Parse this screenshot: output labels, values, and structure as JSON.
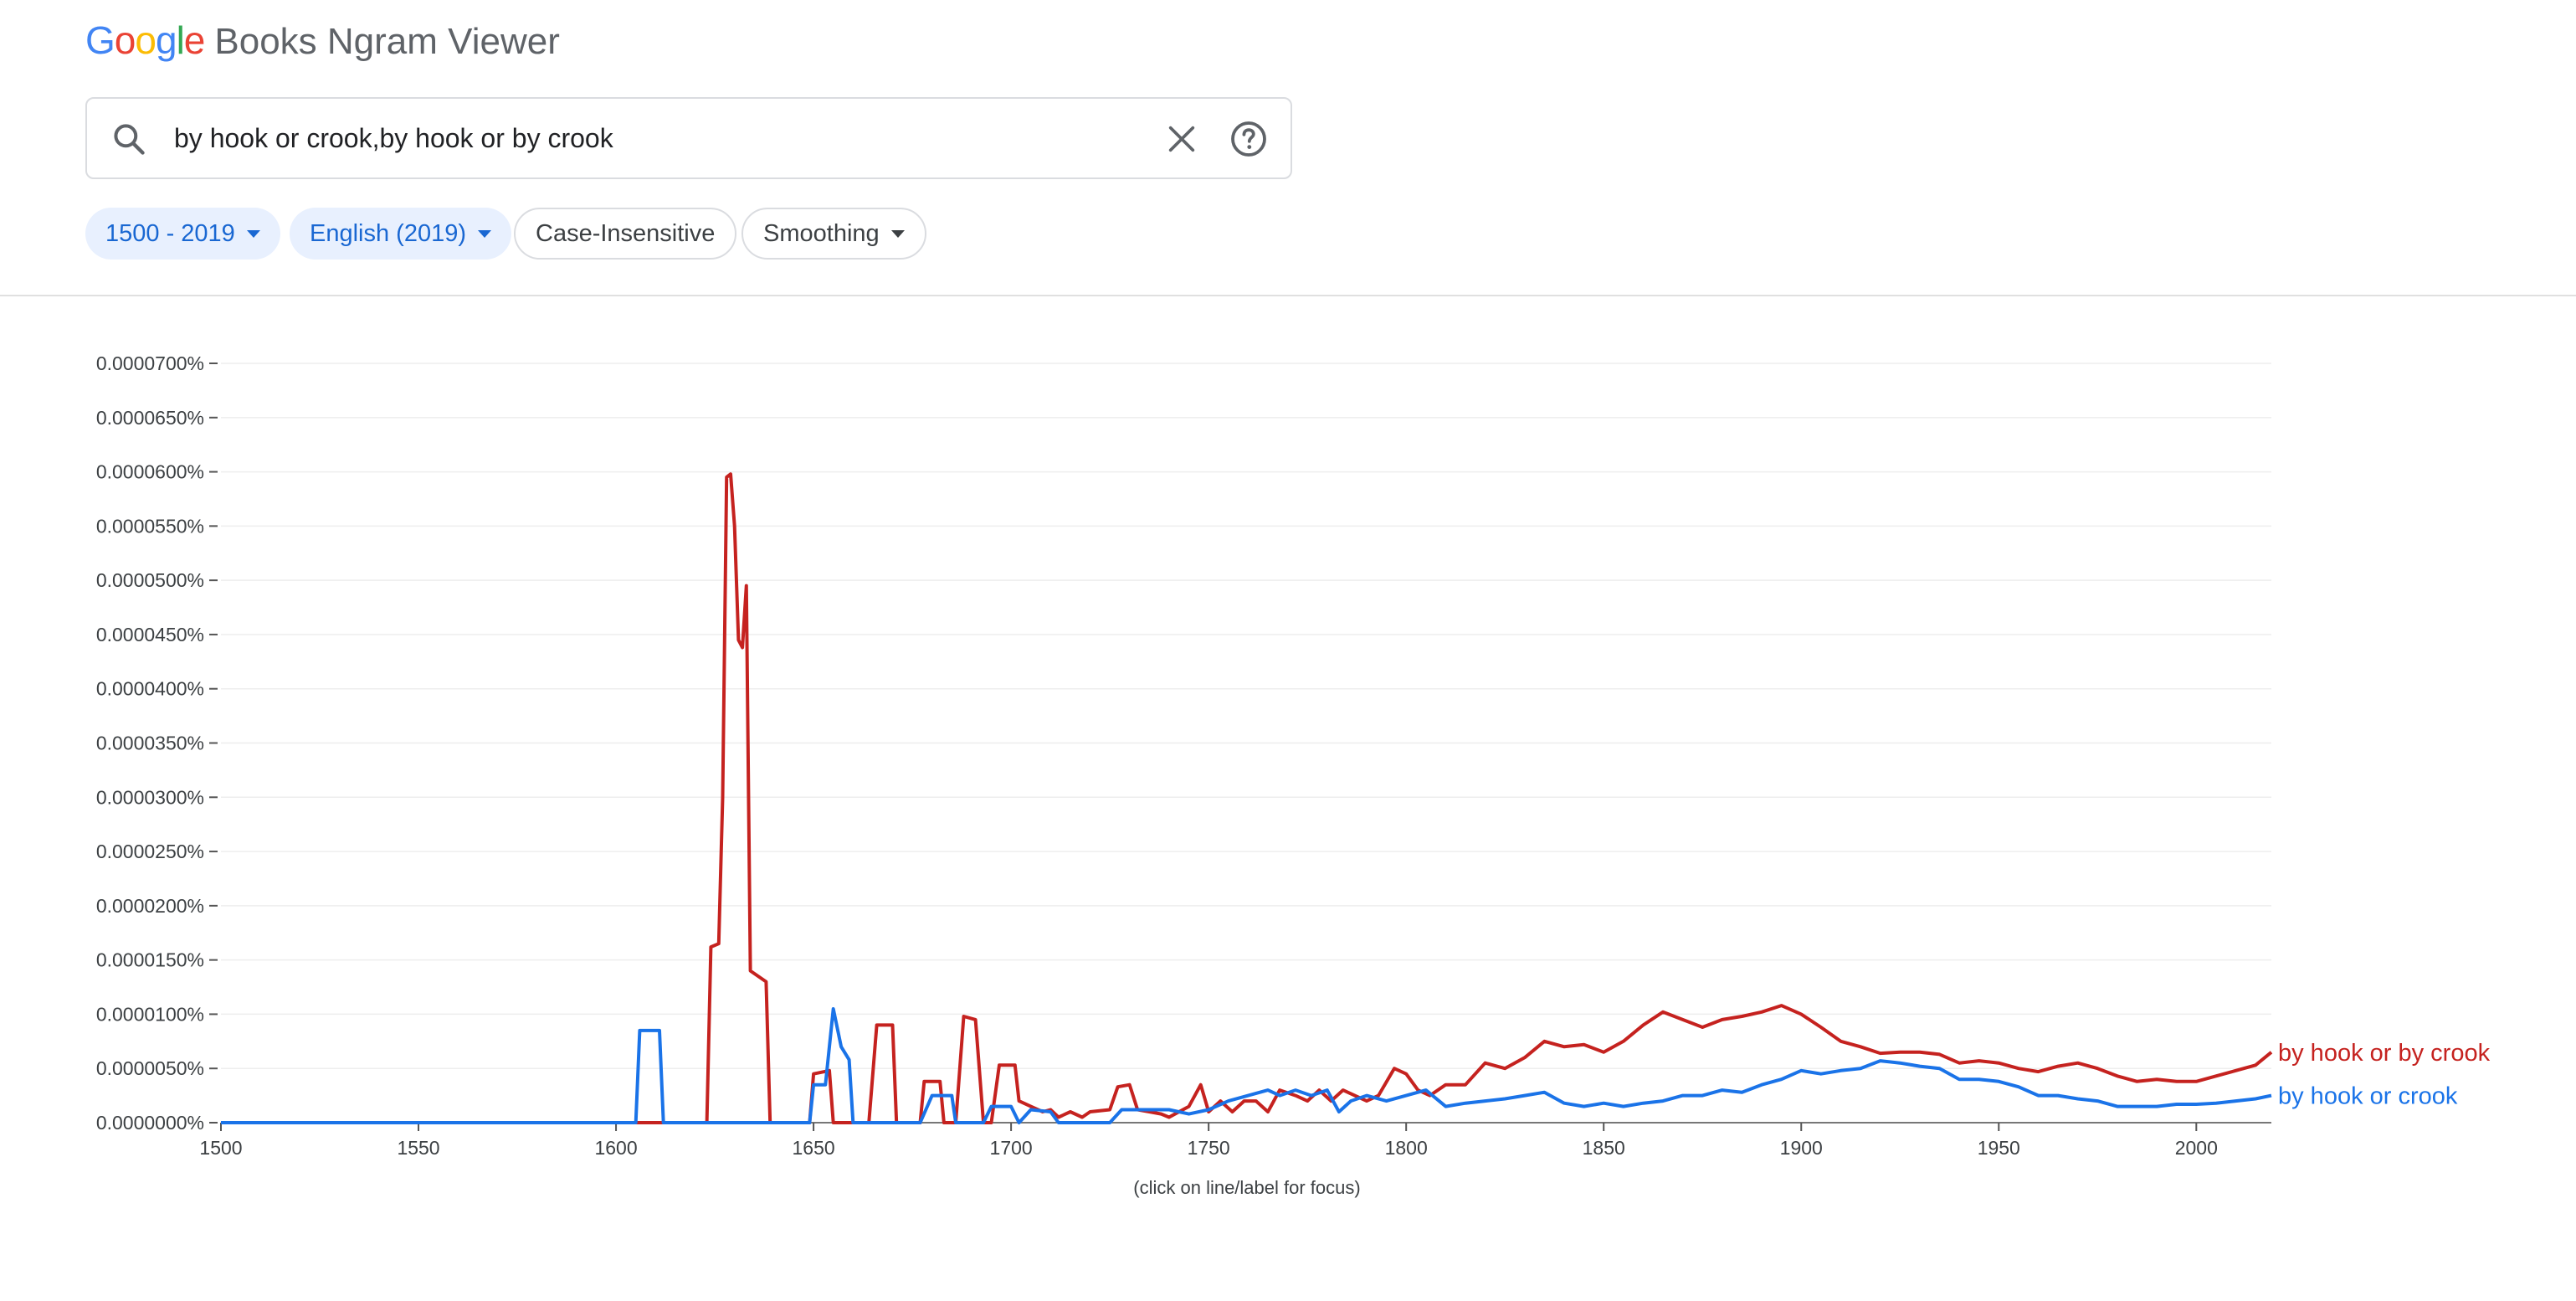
{
  "brand": {
    "google_letters": [
      {
        "ch": "G",
        "color": "#4285F4"
      },
      {
        "ch": "o",
        "color": "#EA4335"
      },
      {
        "ch": "o",
        "color": "#FBBC05"
      },
      {
        "ch": "g",
        "color": "#4285F4"
      },
      {
        "ch": "l",
        "color": "#34A853"
      },
      {
        "ch": "e",
        "color": "#EA4335"
      }
    ],
    "product_name": "Books Ngram Viewer"
  },
  "search": {
    "query": "by hook or crook,by hook or by crook",
    "icons": {
      "search": "search-icon",
      "clear": "close-icon",
      "help": "help-icon"
    }
  },
  "filters": {
    "year_range": "1500 - 2019",
    "corpus": "English (2019)",
    "case": "Case-Insensitive",
    "smoothing": "Smoothing"
  },
  "chart_data": {
    "type": "line",
    "x_range": [
      1500,
      2019
    ],
    "y_range": [
      0,
      7e-05
    ],
    "y_ticks": [
      "0.0000700%",
      "0.0000650%",
      "0.0000600%",
      "0.0000550%",
      "0.0000500%",
      "0.0000450%",
      "0.0000400%",
      "0.0000350%",
      "0.0000300%",
      "0.0000250%",
      "0.0000200%",
      "0.0000150%",
      "0.0000100%",
      "0.0000050%",
      "0.0000000%"
    ],
    "x_ticks": [
      "1500",
      "1550",
      "1600",
      "1650",
      "1700",
      "1750",
      "1800",
      "1850",
      "1900",
      "1950",
      "2000"
    ],
    "grid": true,
    "series": [
      {
        "name": "by hook or by crook",
        "color": "#c5221f",
        "points": [
          [
            1500,
            0
          ],
          [
            1620,
            0
          ],
          [
            1623,
            0
          ],
          [
            1624,
            1.62e-05
          ],
          [
            1626,
            1.65e-05
          ],
          [
            1627,
            3e-05
          ],
          [
            1628,
            5.95e-05
          ],
          [
            1629,
            5.98e-05
          ],
          [
            1630,
            5.5e-05
          ],
          [
            1631,
            4.45e-05
          ],
          [
            1632,
            4.38e-05
          ],
          [
            1633,
            4.95e-05
          ],
          [
            1634,
            1.4e-05
          ],
          [
            1636,
            1.35e-05
          ],
          [
            1638,
            1.3e-05
          ],
          [
            1639,
            0
          ],
          [
            1649,
            0
          ],
          [
            1650,
            4.5e-06
          ],
          [
            1654,
            4.8e-06
          ],
          [
            1655,
            0
          ],
          [
            1664,
            0
          ],
          [
            1666,
            9e-06
          ],
          [
            1670,
            9e-06
          ],
          [
            1671,
            0
          ],
          [
            1677,
            0
          ],
          [
            1678,
            3.8e-06
          ],
          [
            1682,
            3.8e-06
          ],
          [
            1683,
            0
          ],
          [
            1686,
            0
          ],
          [
            1688,
            9.8e-06
          ],
          [
            1691,
            9.5e-06
          ],
          [
            1693,
            0
          ],
          [
            1695,
            0
          ],
          [
            1697,
            5.3e-06
          ],
          [
            1701,
            5.3e-06
          ],
          [
            1702,
            2e-06
          ],
          [
            1705,
            1.5e-06
          ],
          [
            1708,
            1e-06
          ],
          [
            1710,
            1.2e-06
          ],
          [
            1712,
            5e-07
          ],
          [
            1715,
            1e-06
          ],
          [
            1718,
            5e-07
          ],
          [
            1720,
            1e-06
          ],
          [
            1725,
            1.2e-06
          ],
          [
            1727,
            3.3e-06
          ],
          [
            1730,
            3.5e-06
          ],
          [
            1732,
            1.2e-06
          ],
          [
            1735,
            1e-06
          ],
          [
            1738,
            8e-07
          ],
          [
            1740,
            5e-07
          ],
          [
            1745,
            1.5e-06
          ],
          [
            1748,
            3.5e-06
          ],
          [
            1750,
            1e-06
          ],
          [
            1753,
            2e-06
          ],
          [
            1756,
            1e-06
          ],
          [
            1759,
            2e-06
          ],
          [
            1762,
            2e-06
          ],
          [
            1765,
            1e-06
          ],
          [
            1768,
            3e-06
          ],
          [
            1772,
            2.5e-06
          ],
          [
            1775,
            2e-06
          ],
          [
            1778,
            3e-06
          ],
          [
            1781,
            2e-06
          ],
          [
            1784,
            3e-06
          ],
          [
            1787,
            2.5e-06
          ],
          [
            1790,
            2e-06
          ],
          [
            1793,
            2.5e-06
          ],
          [
            1797,
            5e-06
          ],
          [
            1800,
            4.5e-06
          ],
          [
            1803,
            3e-06
          ],
          [
            1806,
            2.5e-06
          ],
          [
            1810,
            3.5e-06
          ],
          [
            1815,
            3.5e-06
          ],
          [
            1820,
            5.5e-06
          ],
          [
            1825,
            5e-06
          ],
          [
            1830,
            6e-06
          ],
          [
            1835,
            7.5e-06
          ],
          [
            1840,
            7e-06
          ],
          [
            1845,
            7.2e-06
          ],
          [
            1850,
            6.5e-06
          ],
          [
            1855,
            7.5e-06
          ],
          [
            1860,
            9e-06
          ],
          [
            1865,
            1.02e-05
          ],
          [
            1870,
            9.5e-06
          ],
          [
            1875,
            8.8e-06
          ],
          [
            1880,
            9.5e-06
          ],
          [
            1885,
            9.8e-06
          ],
          [
            1890,
            1.02e-05
          ],
          [
            1895,
            1.08e-05
          ],
          [
            1900,
            1e-05
          ],
          [
            1905,
            8.8e-06
          ],
          [
            1910,
            7.5e-06
          ],
          [
            1915,
            7e-06
          ],
          [
            1920,
            6.4e-06
          ],
          [
            1925,
            6.5e-06
          ],
          [
            1930,
            6.5e-06
          ],
          [
            1935,
            6.3e-06
          ],
          [
            1940,
            5.5e-06
          ],
          [
            1945,
            5.7e-06
          ],
          [
            1950,
            5.5e-06
          ],
          [
            1955,
            5e-06
          ],
          [
            1960,
            4.7e-06
          ],
          [
            1965,
            5.2e-06
          ],
          [
            1970,
            5.5e-06
          ],
          [
            1975,
            5e-06
          ],
          [
            1980,
            4.3e-06
          ],
          [
            1985,
            3.8e-06
          ],
          [
            1990,
            4e-06
          ],
          [
            1995,
            3.8e-06
          ],
          [
            2000,
            3.8e-06
          ],
          [
            2005,
            4.3e-06
          ],
          [
            2010,
            4.8e-06
          ],
          [
            2015,
            5.3e-06
          ],
          [
            2019,
            6.5e-06
          ]
        ]
      },
      {
        "name": "by hook or crook",
        "color": "#1a73e8",
        "points": [
          [
            1500,
            0
          ],
          [
            1605,
            0
          ],
          [
            1606,
            8.5e-06
          ],
          [
            1611,
            8.5e-06
          ],
          [
            1612,
            0
          ],
          [
            1649,
            0
          ],
          [
            1650,
            3.5e-06
          ],
          [
            1653,
            3.5e-06
          ],
          [
            1655,
            1.05e-05
          ],
          [
            1657,
            7e-06
          ],
          [
            1659,
            5.8e-06
          ],
          [
            1660,
            0
          ],
          [
            1677,
            0
          ],
          [
            1680,
            2.5e-06
          ],
          [
            1685,
            2.5e-06
          ],
          [
            1686,
            0
          ],
          [
            1693,
            0
          ],
          [
            1695,
            1.5e-06
          ],
          [
            1700,
            1.5e-06
          ],
          [
            1702,
            0
          ],
          [
            1705,
            1.2e-06
          ],
          [
            1710,
            1e-06
          ],
          [
            1712,
            0
          ],
          [
            1715,
            0
          ],
          [
            1720,
            0
          ],
          [
            1725,
            0
          ],
          [
            1728,
            1.2e-06
          ],
          [
            1740,
            1.2e-06
          ],
          [
            1745,
            8e-07
          ],
          [
            1750,
            1.2e-06
          ],
          [
            1755,
            2e-06
          ],
          [
            1760,
            2.5e-06
          ],
          [
            1765,
            3e-06
          ],
          [
            1768,
            2.5e-06
          ],
          [
            1772,
            3e-06
          ],
          [
            1776,
            2.5e-06
          ],
          [
            1780,
            3e-06
          ],
          [
            1783,
            1e-06
          ],
          [
            1786,
            2e-06
          ],
          [
            1790,
            2.5e-06
          ],
          [
            1795,
            2e-06
          ],
          [
            1800,
            2.5e-06
          ],
          [
            1805,
            3e-06
          ],
          [
            1810,
            1.5e-06
          ],
          [
            1815,
            1.8e-06
          ],
          [
            1820,
            2e-06
          ],
          [
            1825,
            2.2e-06
          ],
          [
            1830,
            2.5e-06
          ],
          [
            1835,
            2.8e-06
          ],
          [
            1840,
            1.8e-06
          ],
          [
            1845,
            1.5e-06
          ],
          [
            1850,
            1.8e-06
          ],
          [
            1855,
            1.5e-06
          ],
          [
            1860,
            1.8e-06
          ],
          [
            1865,
            2e-06
          ],
          [
            1870,
            2.5e-06
          ],
          [
            1875,
            2.5e-06
          ],
          [
            1880,
            3e-06
          ],
          [
            1885,
            2.8e-06
          ],
          [
            1890,
            3.5e-06
          ],
          [
            1895,
            4e-06
          ],
          [
            1900,
            4.8e-06
          ],
          [
            1905,
            4.5e-06
          ],
          [
            1910,
            4.8e-06
          ],
          [
            1915,
            5e-06
          ],
          [
            1920,
            5.7e-06
          ],
          [
            1925,
            5.5e-06
          ],
          [
            1930,
            5.2e-06
          ],
          [
            1935,
            5e-06
          ],
          [
            1940,
            4e-06
          ],
          [
            1945,
            4e-06
          ],
          [
            1950,
            3.8e-06
          ],
          [
            1955,
            3.3e-06
          ],
          [
            1960,
            2.5e-06
          ],
          [
            1965,
            2.5e-06
          ],
          [
            1970,
            2.2e-06
          ],
          [
            1975,
            2e-06
          ],
          [
            1980,
            1.5e-06
          ],
          [
            1985,
            1.5e-06
          ],
          [
            1990,
            1.5e-06
          ],
          [
            1995,
            1.7e-06
          ],
          [
            2000,
            1.7e-06
          ],
          [
            2005,
            1.8e-06
          ],
          [
            2010,
            2e-06
          ],
          [
            2015,
            2.2e-06
          ],
          [
            2019,
            2.5e-06
          ]
        ]
      }
    ]
  },
  "chart_note": "(click on line/label for focus)"
}
